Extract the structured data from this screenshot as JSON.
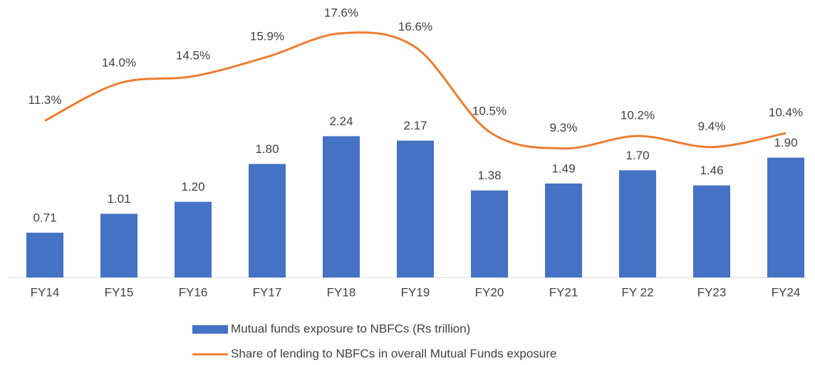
{
  "chart_data": {
    "type": "bar_line",
    "categories": [
      "FY14",
      "FY15",
      "FY16",
      "FY17",
      "FY18",
      "FY19",
      "FY20",
      "FY21",
      "FY 22",
      "FY23",
      "FY24"
    ],
    "series": [
      {
        "name": "Mutual funds exposure to NBFCs (Rs trillion)",
        "color": "#4472c4",
        "type": "bar",
        "values": [
          0.71,
          1.01,
          1.2,
          1.8,
          2.24,
          2.17,
          1.38,
          1.49,
          1.7,
          1.46,
          1.9
        ],
        "value_labels": [
          "0.71",
          "1.01",
          "1.20",
          "1.80",
          "2.24",
          "2.17",
          "1.38",
          "1.49",
          "1.70",
          "1.46",
          "1.90"
        ]
      },
      {
        "name": "Share of lending to NBFCs in overall Mutual Funds exposure",
        "color": "#ed7d31",
        "type": "line",
        "axis": "y2",
        "values": [
          11.3,
          14.0,
          14.5,
          15.9,
          17.6,
          16.6,
          10.5,
          9.3,
          10.2,
          9.4,
          10.4
        ],
        "value_labels": [
          "11.3%",
          "14.0%",
          "14.5%",
          "15.9%",
          "17.6%",
          "16.6%",
          "10.5%",
          "9.3%",
          "10.2%",
          "9.4%",
          "10.4%"
        ]
      }
    ],
    "ylim": [
      0,
      4.4
    ],
    "y2lim": [
      0,
      20
    ],
    "legend": "bottom"
  }
}
